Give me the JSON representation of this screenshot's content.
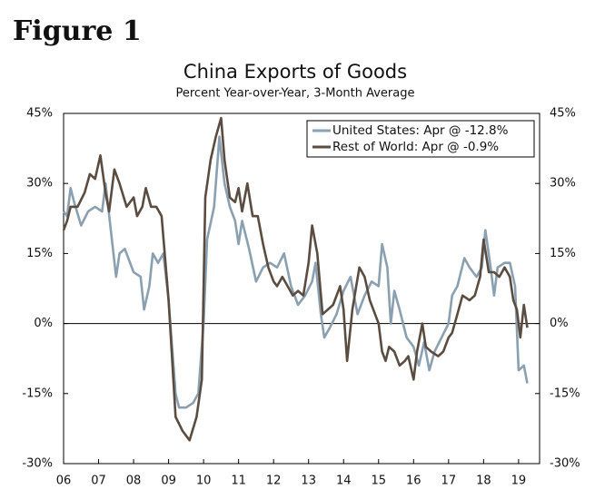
{
  "chart_data": {
    "type": "line",
    "figure_label": "Figure 1",
    "title": "China Exports of Goods",
    "subtitle": "Percent Year-over-Year, 3-Month Average",
    "xlim": [
      2006,
      2019.6
    ],
    "xticks": [
      {
        "value": 2006,
        "label": "06"
      },
      {
        "value": 2007,
        "label": "07"
      },
      {
        "value": 2008,
        "label": "08"
      },
      {
        "value": 2009,
        "label": "09"
      },
      {
        "value": 2010,
        "label": "10"
      },
      {
        "value": 2011,
        "label": "11"
      },
      {
        "value": 2012,
        "label": "12"
      },
      {
        "value": 2013,
        "label": "13"
      },
      {
        "value": 2014,
        "label": "14"
      },
      {
        "value": 2015,
        "label": "15"
      },
      {
        "value": 2016,
        "label": "16"
      },
      {
        "value": 2017,
        "label": "17"
      },
      {
        "value": 2018,
        "label": "18"
      },
      {
        "value": 2019,
        "label": "19"
      }
    ],
    "ylim": [
      -30,
      45
    ],
    "yticks": [
      {
        "value": -30,
        "label": "-30%"
      },
      {
        "value": -15,
        "label": "-15%"
      },
      {
        "value": 0,
        "label": "0%"
      },
      {
        "value": 15,
        "label": "15%"
      },
      {
        "value": 30,
        "label": "30%"
      },
      {
        "value": 45,
        "label": "45%"
      }
    ],
    "y2lim": [
      -30,
      45
    ],
    "y2ticks": [
      {
        "value": -30,
        "label": "-30%"
      },
      {
        "value": -15,
        "label": "-15%"
      },
      {
        "value": 0,
        "label": "0%"
      },
      {
        "value": 15,
        "label": "15%"
      },
      {
        "value": 30,
        "label": "30%"
      },
      {
        "value": 45,
        "label": "45%"
      }
    ],
    "legend": "upper right",
    "series": [
      {
        "name": "United States: Apr @ -12.8%",
        "color": "#8aa0b0",
        "x": [
          2006.0,
          2006.1,
          2006.2,
          2006.3,
          2006.5,
          2006.7,
          2006.9,
          2007.1,
          2007.2,
          2007.35,
          2007.5,
          2007.6,
          2007.75,
          2008.0,
          2008.2,
          2008.3,
          2008.45,
          2008.55,
          2008.7,
          2008.85,
          2009.0,
          2009.2,
          2009.3,
          2009.5,
          2009.7,
          2009.85,
          2010.0,
          2010.1,
          2010.3,
          2010.45,
          2010.6,
          2010.75,
          2010.9,
          2011.0,
          2011.1,
          2011.3,
          2011.5,
          2011.7,
          2011.9,
          2012.1,
          2012.3,
          2012.5,
          2012.7,
          2012.9,
          2013.1,
          2013.2,
          2013.35,
          2013.45,
          2013.6,
          2013.8,
          2014.0,
          2014.2,
          2014.4,
          2014.6,
          2014.8,
          2015.0,
          2015.1,
          2015.25,
          2015.35,
          2015.45,
          2015.6,
          2015.8,
          2016.0,
          2016.15,
          2016.3,
          2016.45,
          2016.6,
          2016.8,
          2017.0,
          2017.1,
          2017.25,
          2017.45,
          2017.6,
          2017.8,
          2017.95,
          2018.05,
          2018.2,
          2018.3,
          2018.4,
          2018.6,
          2018.75,
          2018.9,
          2019.0,
          2019.15,
          2019.25
        ],
        "values": [
          24,
          23,
          29,
          26,
          21,
          24,
          25,
          24,
          30,
          20,
          10,
          15,
          16,
          11,
          10,
          3,
          8,
          15,
          13,
          15,
          5,
          -15,
          -18,
          -18,
          -17,
          -15,
          0,
          18,
          25,
          40,
          30,
          25,
          22,
          17,
          22,
          16,
          9,
          12,
          13,
          12,
          15,
          8,
          4,
          6,
          9,
          13,
          2,
          -3,
          -1,
          2,
          7,
          10,
          2,
          6,
          9,
          8,
          17,
          12,
          0,
          7,
          3,
          -3,
          -5,
          -9,
          -4,
          -10,
          -6,
          -3,
          0,
          6,
          8,
          14,
          12,
          10,
          12,
          20,
          12,
          6,
          12,
          13,
          13,
          8,
          -10,
          -9,
          -12.8
        ]
      },
      {
        "name": "Rest of World: Apr @ -0.9%",
        "color": "#5a4c40",
        "x": [
          2006.0,
          2006.1,
          2006.2,
          2006.4,
          2006.6,
          2006.75,
          2006.9,
          2007.05,
          2007.2,
          2007.3,
          2007.45,
          2007.6,
          2007.8,
          2008.0,
          2008.1,
          2008.25,
          2008.35,
          2008.5,
          2008.65,
          2008.8,
          2009.0,
          2009.2,
          2009.4,
          2009.6,
          2009.8,
          2009.95,
          2010.05,
          2010.2,
          2010.35,
          2010.5,
          2010.6,
          2010.75,
          2010.9,
          2011.0,
          2011.1,
          2011.25,
          2011.4,
          2011.55,
          2011.7,
          2011.85,
          2012.0,
          2012.1,
          2012.25,
          2012.4,
          2012.55,
          2012.7,
          2012.85,
          2013.0,
          2013.1,
          2013.25,
          2013.4,
          2013.55,
          2013.7,
          2013.9,
          2014.0,
          2014.1,
          2014.25,
          2014.45,
          2014.6,
          2014.75,
          2014.9,
          2015.0,
          2015.1,
          2015.2,
          2015.3,
          2015.45,
          2015.6,
          2015.75,
          2015.85,
          2016.0,
          2016.1,
          2016.25,
          2016.35,
          2016.5,
          2016.7,
          2016.85,
          2017.0,
          2017.1,
          2017.25,
          2017.4,
          2017.6,
          2017.75,
          2017.9,
          2018.0,
          2018.15,
          2018.3,
          2018.45,
          2018.6,
          2018.75,
          2018.85,
          2018.95,
          2019.05,
          2019.15,
          2019.25
        ],
        "values": [
          20,
          22,
          25,
          25,
          28,
          32,
          31,
          36,
          28,
          24,
          33,
          30,
          25,
          27,
          23,
          25,
          29,
          25,
          25,
          23,
          5,
          -20,
          -23,
          -25,
          -20,
          -12,
          27,
          35,
          40,
          44,
          35,
          27,
          26,
          29,
          24,
          30,
          23,
          23,
          17,
          12,
          9,
          8,
          10,
          8,
          6,
          7,
          6,
          13,
          21,
          15,
          2,
          3,
          4,
          8,
          3,
          -8,
          3,
          12,
          10,
          5,
          2,
          0,
          -6,
          -8,
          -5,
          -6,
          -9,
          -8,
          -7,
          -12,
          -6,
          0,
          -5,
          -6,
          -7,
          -6,
          -3,
          -2,
          2,
          6,
          5,
          6,
          10,
          18,
          11,
          11,
          10,
          12,
          10,
          5,
          3,
          -3,
          4,
          -0.9
        ]
      }
    ]
  }
}
